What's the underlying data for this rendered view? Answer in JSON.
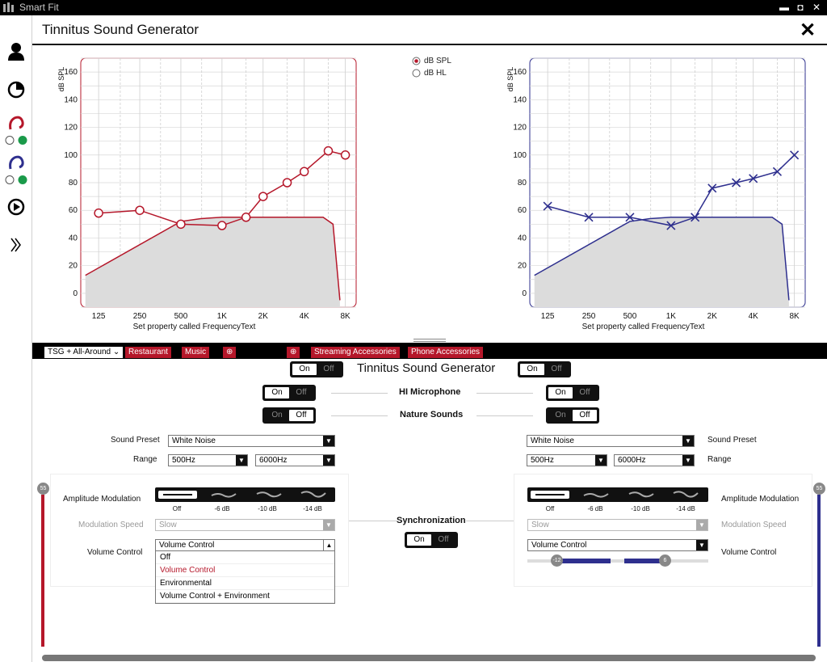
{
  "window": {
    "title": "Smart Fit",
    "minimize": "▬",
    "restore": "◘",
    "close": "✕"
  },
  "header": {
    "title": "Tinnitus Sound Generator",
    "close": "✕"
  },
  "sidebar": {
    "icons": [
      "user-icon",
      "pie-chart-icon",
      "left-ear-icon",
      "right-ear-icon",
      "play-icon",
      "double-chevron-right-icon"
    ]
  },
  "scale_option": {
    "spl": "dB SPL",
    "hl": "dB HL",
    "selected": "dB SPL"
  },
  "chart_data": [
    {
      "type": "line",
      "side": "left",
      "color": "#b5172a",
      "ylabel": "dB SPL",
      "xlabel": "Set property called FrequencyText",
      "x_ticks": [
        "125",
        "250",
        "500",
        "1K",
        "2K",
        "4K",
        "8K"
      ],
      "y_ticks": [
        0,
        20,
        40,
        60,
        80,
        100,
        120,
        140,
        160
      ],
      "ylim": [
        -10,
        170
      ],
      "series": [
        {
          "marker": "circle",
          "x": [
            125,
            250,
            500,
            1000,
            1500,
            2000,
            3000,
            4000,
            6000,
            8000
          ],
          "y": [
            58,
            60,
            50,
            49,
            55,
            70,
            80,
            88,
            103,
            100
          ]
        },
        {
          "marker": "none",
          "fill": "#dcdcdc",
          "x": [
            100,
            500,
            700,
            1000,
            2000,
            4000,
            5500,
            6500,
            7300
          ],
          "y": [
            13,
            52,
            54,
            55,
            55,
            55,
            55,
            50,
            -5
          ]
        }
      ]
    },
    {
      "type": "line",
      "side": "right",
      "color": "#2e2f8e",
      "ylabel": "dB SPL",
      "xlabel": "Set property called FrequencyText",
      "x_ticks": [
        "125",
        "250",
        "500",
        "1K",
        "2K",
        "4K",
        "8K"
      ],
      "y_ticks": [
        0,
        20,
        40,
        60,
        80,
        100,
        120,
        140,
        160
      ],
      "ylim": [
        -10,
        170
      ],
      "series": [
        {
          "marker": "x",
          "x": [
            125,
            250,
            500,
            1000,
            1500,
            2000,
            3000,
            4000,
            6000,
            8000
          ],
          "y": [
            63,
            55,
            55,
            49,
            55,
            76,
            80,
            83,
            88,
            100
          ]
        },
        {
          "marker": "none",
          "fill": "#dcdcdc",
          "x": [
            100,
            500,
            700,
            1000,
            2000,
            4000,
            5500,
            6500,
            7300
          ],
          "y": [
            13,
            52,
            54,
            55,
            55,
            55,
            55,
            50,
            -5
          ]
        }
      ]
    }
  ],
  "tabs": [
    {
      "label": "TSG + All-Around ⌄",
      "active": true
    },
    {
      "label": "Restaurant",
      "active": false
    },
    {
      "label": "Music",
      "active": false
    },
    {
      "label": "⊕",
      "active": false
    },
    {
      "label": "⊕",
      "active": false
    },
    {
      "label": "Streaming Accessories",
      "active": false
    },
    {
      "label": "Phone Accessories",
      "active": false
    }
  ],
  "controls": {
    "tsg_title": "Tinnitus Sound Generator",
    "on": "On",
    "off": "Off",
    "hi_microphone": "HI Microphone",
    "nature_sounds": "Nature Sounds",
    "synchronization": "Synchronization",
    "sound_preset_label": "Sound Preset",
    "range_label": "Range",
    "amplitude_modulation_label": "Amplitude Modulation",
    "modulation_speed_label": "Modulation Speed",
    "volume_control_label": "Volume Control"
  },
  "left": {
    "sound_preset": "White Noise",
    "range_low": "500Hz",
    "range_high": "6000Hz",
    "am_levels": [
      "Off",
      "-6 dB",
      "-10 dB",
      "-14 dB"
    ],
    "modulation_speed": "Slow",
    "volume_control": "Volume Control",
    "volume_options": [
      "Off",
      "Volume Control",
      "Environmental",
      "Volume Control + Environment"
    ],
    "slider_value": "55",
    "slider_level": 0.55
  },
  "right": {
    "sound_preset": "White Noise",
    "range_low": "500Hz",
    "range_high": "6000Hz",
    "am_levels": [
      "Off",
      "-6 dB",
      "-10 dB",
      "-14 dB"
    ],
    "modulation_speed": "Slow",
    "volume_control": "Volume Control",
    "vc_min": "-12",
    "vc_max": "6",
    "slider_value": "55",
    "slider_level": 0.55
  }
}
